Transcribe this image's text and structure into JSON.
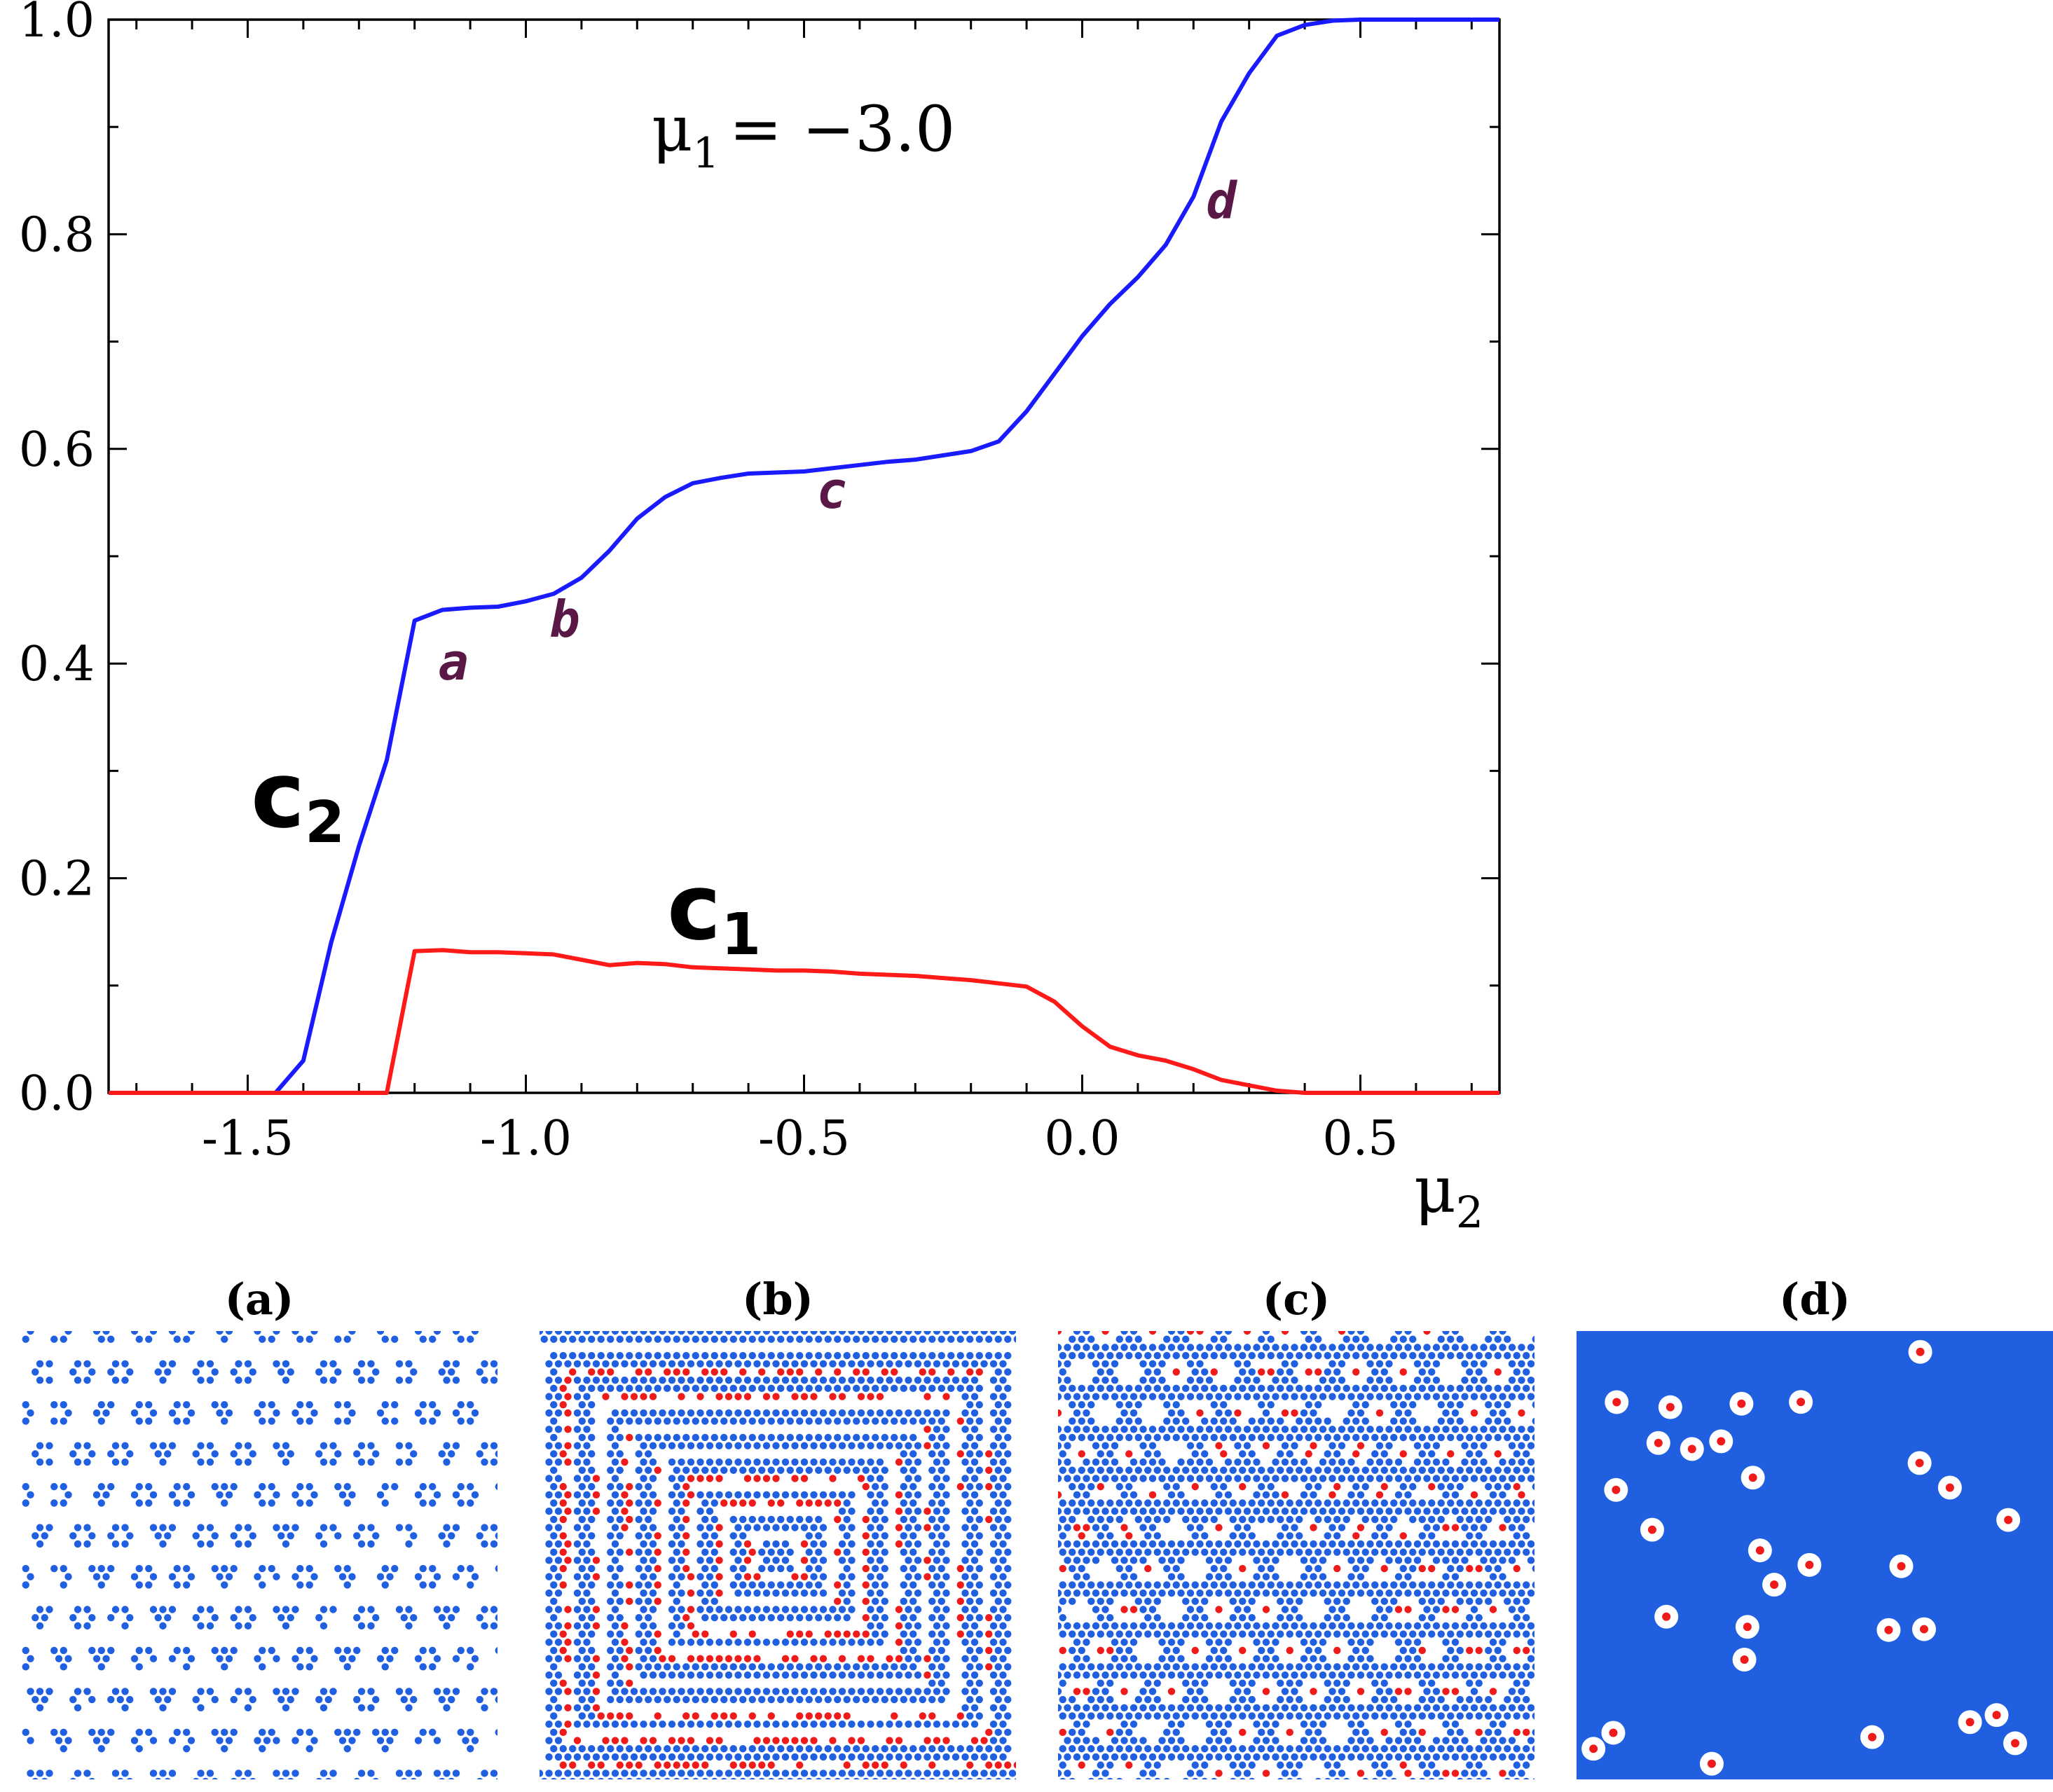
{
  "chart_data": {
    "type": "line",
    "annotation": {
      "symbol": "μ",
      "subscript": "1",
      "value_text": "= −3.0"
    },
    "xlabel": {
      "symbol": "μ",
      "subscript": "2"
    },
    "ylabel": "",
    "xlim": [
      -1.75,
      0.75
    ],
    "ylim": [
      0.0,
      1.0
    ],
    "x_ticks": [
      "-1.5",
      "-1.0",
      "-0.5",
      "0.0",
      "0.5"
    ],
    "x_tick_values": [
      -1.5,
      -1.0,
      -0.5,
      0.0,
      0.5
    ],
    "y_ticks": [
      "0.0",
      "0.2",
      "0.4",
      "0.6",
      "0.8",
      "1.0"
    ],
    "y_tick_values": [
      0.0,
      0.2,
      0.4,
      0.6,
      0.8,
      1.0
    ],
    "series": [
      {
        "name": "c2",
        "label_main": "c",
        "label_sub": "2",
        "color": "#1a1aff",
        "x": [
          -1.75,
          -1.45,
          -1.4,
          -1.35,
          -1.3,
          -1.25,
          -1.2,
          -1.15,
          -1.1,
          -1.05,
          -1.0,
          -0.95,
          -0.9,
          -0.85,
          -0.8,
          -0.75,
          -0.7,
          -0.65,
          -0.6,
          -0.55,
          -0.5,
          -0.45,
          -0.4,
          -0.35,
          -0.3,
          -0.25,
          -0.2,
          -0.15,
          -0.1,
          -0.05,
          0.0,
          0.05,
          0.1,
          0.15,
          0.2,
          0.25,
          0.3,
          0.35,
          0.4,
          0.45,
          0.5,
          0.55,
          0.6,
          0.65,
          0.7,
          0.75
        ],
        "values": [
          0.0,
          0.0,
          0.03,
          0.14,
          0.23,
          0.31,
          0.44,
          0.45,
          0.452,
          0.453,
          0.458,
          0.465,
          0.48,
          0.505,
          0.535,
          0.555,
          0.568,
          0.573,
          0.577,
          0.578,
          0.579,
          0.582,
          0.585,
          0.588,
          0.59,
          0.594,
          0.598,
          0.607,
          0.635,
          0.67,
          0.705,
          0.735,
          0.76,
          0.79,
          0.835,
          0.905,
          0.95,
          0.985,
          0.995,
          0.999,
          1.0,
          1.0,
          1.0,
          1.0,
          1.0,
          1.0
        ]
      },
      {
        "name": "c1",
        "label_main": "c",
        "label_sub": "1",
        "color": "#ff1a1a",
        "x": [
          -1.75,
          -1.25,
          -1.2,
          -1.15,
          -1.1,
          -1.05,
          -1.0,
          -0.95,
          -0.9,
          -0.85,
          -0.8,
          -0.75,
          -0.7,
          -0.65,
          -0.6,
          -0.55,
          -0.5,
          -0.45,
          -0.4,
          -0.35,
          -0.3,
          -0.25,
          -0.2,
          -0.15,
          -0.1,
          -0.05,
          0.0,
          0.05,
          0.1,
          0.15,
          0.2,
          0.25,
          0.3,
          0.35,
          0.4,
          0.45,
          0.5,
          0.55,
          0.6,
          0.65,
          0.7,
          0.75
        ],
        "values": [
          0.0,
          0.0,
          0.132,
          0.133,
          0.131,
          0.131,
          0.13,
          0.129,
          0.124,
          0.119,
          0.121,
          0.12,
          0.117,
          0.116,
          0.115,
          0.114,
          0.114,
          0.113,
          0.111,
          0.11,
          0.109,
          0.107,
          0.105,
          0.102,
          0.099,
          0.085,
          0.062,
          0.043,
          0.035,
          0.03,
          0.022,
          0.012,
          0.007,
          0.002,
          0.0,
          0.0,
          0.0,
          0.0,
          0.0,
          0.0,
          0.0,
          0.0
        ]
      }
    ],
    "point_labels": [
      {
        "text": "a",
        "x": -1.13,
        "y": 0.385
      },
      {
        "text": "b",
        "x": -0.93,
        "y": 0.425
      },
      {
        "text": "c",
        "x": -0.45,
        "y": 0.545
      },
      {
        "text": "d",
        "x": 0.25,
        "y": 0.815
      }
    ]
  },
  "panels": [
    {
      "title": "(a)",
      "pattern": "flower-clusters",
      "red_fraction": 0.0
    },
    {
      "title": "(b)",
      "pattern": "stripes",
      "red_fraction": 0.25
    },
    {
      "title": "(c)",
      "pattern": "honeycomb",
      "red_fraction": 0.2
    },
    {
      "title": "(d)",
      "pattern": "dense-with-voids",
      "red_fraction": 0.02
    }
  ],
  "colors": {
    "blue_particle": "#1f5fe0",
    "red_particle": "#ef1b1b",
    "axis": "#000000"
  }
}
